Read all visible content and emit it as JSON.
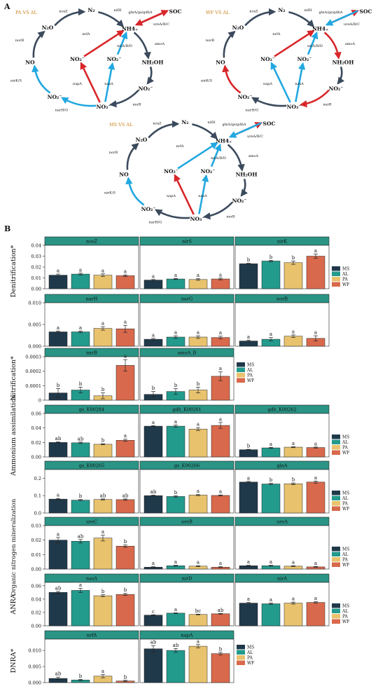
{
  "colors": {
    "MS": "#20394a",
    "AL": "#229a8c",
    "PA": "#e8c26d",
    "WF": "#d9694c",
    "header": "#2a9485",
    "arrow_dark": "#3b4a5c",
    "arrow_red": "#d8262a",
    "arrow_blue": "#22a8e0",
    "cmp_label": "#c9821c"
  },
  "panel_a": {
    "label": "A",
    "diagrams": [
      {
        "comparison": "PA VS AL",
        "nodes": {
          "n2": "N₂",
          "nh4": "NH4₊",
          "soc": "SOC",
          "nh2oh": "NH₂OH",
          "no2_right": "NO₂⁻",
          "no3": "NO₃⁻",
          "no2_left": "NO₂⁻",
          "no": "NO",
          "n2o": "N₂O",
          "no2_inner_left": "NO₂⁻",
          "no2_inner_right": "NO₂⁻"
        },
        "genes": {
          "nosZ": "nosZ",
          "nifH": "nifH",
          "glnA": "glnA/gs/gdhA",
          "ureA": "ureA/B/C",
          "amoA": "amoA",
          "nxrB": "nxrB",
          "narHG": "narH/G",
          "nirKS": "nirK/S",
          "norB": "norB",
          "nrfA": "nrfA",
          "nirAB": "nirA/B/D",
          "napA": "napA",
          "nasA": "nasA"
        },
        "arrow_colors": {
          "nrfA": "red",
          "napA": "red",
          "nirAB": "blue",
          "nasA": "blue",
          "glnA": "red",
          "ureA": "red",
          "amoA": "dark",
          "nxrB": "dark",
          "narHG": "blue",
          "nirKS": "blue",
          "norB": "dark",
          "nosZ": "dark",
          "nifH": "dark"
        }
      },
      {
        "comparison": "WF VS AL",
        "nodes": {
          "n2": "N₂",
          "nh4": "NH4₊",
          "soc": "SOC",
          "nh2oh": "NH₂OH",
          "no2_right": "NO₂⁻",
          "no3": "NO₃⁻",
          "no2_left": "NO₂⁻",
          "no": "NO",
          "n2o": "N₂O",
          "no2_inner_left": "NO₂⁻",
          "no2_inner_right": "NO₂⁻"
        },
        "genes": {
          "nosZ": "nosZ",
          "nifH": "nifH",
          "glnA": "glnA/gs/gdhA",
          "ureA": "ureA/B/C",
          "amoA": "amoA",
          "nxrB": "nxrB",
          "narHG": "narH/G",
          "nirKS": "nirK/S",
          "norB": "norB",
          "nrfA": "nrfA",
          "nirAB": "nirA/B/D",
          "napA": "napA",
          "nasA": "nasA"
        },
        "arrow_colors": {
          "nrfA": "red",
          "napA": "blue",
          "nirAB": "blue",
          "nasA": "blue",
          "glnA": "red",
          "ureA": "blue",
          "amoA": "red",
          "nxrB": "red",
          "narHG": "dark",
          "nirKS": "red",
          "norB": "dark",
          "nosZ": "dark",
          "nifH": "dark"
        }
      },
      {
        "comparison": "MS VS AL",
        "nodes": {
          "n2": "N₂",
          "nh4": "NH4₊",
          "soc": "SOC",
          "nh2oh": "NH₂OH",
          "no2_right": "NO₂⁻",
          "no3": "NO₃⁻",
          "no2_left": "NO₂⁻",
          "no": "NO",
          "n2o": "N₂O",
          "no2_inner_left": "NO₂⁻",
          "no2_inner_right": "NO₂⁻"
        },
        "genes": {
          "nosZ": "nosZ",
          "nifH": "nifH",
          "glnA": "glnA/gs/gdhA",
          "ureA": "ureA/B/C",
          "amoA": "amoA",
          "nxrB": "nxrB",
          "narHG": "narH/G",
          "nirKS": "nirK/S",
          "norB": "norB",
          "nrfA": "nrfA",
          "nirAB": "nirA/B/D",
          "napA": "napA",
          "nasA": "nasA"
        },
        "arrow_colors": {
          "nrfA": "blue",
          "napA": "red",
          "nirAB": "blue",
          "nasA": "blue",
          "glnA": "red",
          "ureA": "blue",
          "amoA": "dark",
          "nxrB": "dark",
          "narHG": "dark",
          "nirKS": "blue",
          "norB": "dark",
          "nosZ": "dark",
          "nifH": "dark"
        }
      }
    ]
  },
  "chart_data": {
    "label": "B",
    "type": "bar",
    "groups": [
      "MS",
      "AL",
      "PA",
      "WF"
    ],
    "rows": [
      {
        "ylabel": "Denitrification*",
        "yticks": [
          "0.00",
          "0.01",
          "0.02",
          "0.03",
          "0.04"
        ],
        "ylim": [
          0,
          0.04
        ],
        "panels": [
          {
            "title": "nosZ",
            "values": [
              0.0125,
              0.0135,
              0.0125,
              0.012
            ],
            "errors": [
              0.001,
              0.0008,
              0.0012,
              0.0008
            ],
            "letters": [
              "a",
              "a",
              "a",
              "a"
            ]
          },
          {
            "title": "nirS",
            "values": [
              0.008,
              0.009,
              0.0085,
              0.009
            ],
            "errors": [
              0.0005,
              0.0005,
              0.0007,
              0.0008
            ],
            "letters": [
              "a",
              "a",
              "a",
              "a"
            ]
          },
          {
            "title": "nirK",
            "values": [
              0.023,
              0.0255,
              0.024,
              0.03
            ],
            "errors": [
              0.0005,
              0.0006,
              0.0015,
              0.002
            ],
            "letters": [
              "b",
              "b",
              "b",
              "a"
            ]
          }
        ],
        "legend": true
      },
      {
        "ylabel": "",
        "yticks": [
          "0.000",
          "0.005",
          "0.010"
        ],
        "ylim": [
          0,
          0.01
        ],
        "panels": [
          {
            "title": "narH",
            "values": [
              0.0033,
              0.0033,
              0.0041,
              0.004
            ],
            "errors": [
              0.0002,
              0.0002,
              0.0004,
              0.0008
            ],
            "letters": [
              "a",
              "a",
              "a",
              "a"
            ]
          },
          {
            "title": "narG",
            "values": [
              0.0016,
              0.0021,
              0.0021,
              0.002
            ],
            "errors": [
              0.0002,
              0.0003,
              0.0003,
              0.0003
            ],
            "letters": [
              "a",
              "a",
              "a",
              "a"
            ]
          },
          {
            "title": "norB",
            "values": [
              0.0012,
              0.0016,
              0.0023,
              0.0018
            ],
            "errors": [
              0.0002,
              0.0004,
              0.0003,
              0.0006
            ],
            "letters": [
              "a",
              "a",
              "a",
              "a"
            ]
          }
        ],
        "legend": false
      },
      {
        "ylabel": "Nitrification*",
        "yticks": [
          "0",
          "0.0001",
          "0.0002",
          "0.0003"
        ],
        "ylim": [
          0,
          0.0003
        ],
        "panels": [
          {
            "title": "nxrB",
            "values": [
              5e-05,
              7e-05,
              3e-05,
              0.00024
            ],
            "errors": [
              3e-05,
              2e-05,
              2e-05,
              4e-05
            ],
            "letters": [
              "b",
              "b",
              "b",
              "a"
            ]
          },
          {
            "title": "amoA_B",
            "values": [
              4e-05,
              6e-05,
              7e-05,
              0.000165
            ],
            "errors": [
              2e-05,
              2e-05,
              2e-05,
              3e-05
            ],
            "letters": [
              "b",
              "b",
              "b",
              "a"
            ]
          }
        ],
        "legend": true
      },
      {
        "ylabel": "Ammonium assimilation",
        "yticks": [
          "0.00",
          "0.02",
          "0.04",
          "0.06"
        ],
        "ylim": [
          0,
          0.06
        ],
        "panels": [
          {
            "title": "gs_K00284",
            "values": [
              0.02,
              0.0195,
              0.0175,
              0.023
            ],
            "errors": [
              0.0007,
              0.001,
              0.0007,
              0.0015
            ],
            "letters": [
              "ab",
              "ab",
              "b",
              "a"
            ]
          },
          {
            "title": "gdh_K00261",
            "values": [
              0.0425,
              0.0425,
              0.0385,
              0.0435
            ],
            "errors": [
              0.0008,
              0.0015,
              0.002,
              0.004
            ],
            "letters": [
              "a",
              "a",
              "a",
              "a"
            ]
          },
          {
            "title": "gdh_K00262",
            "values": [
              0.01,
              0.0125,
              0.0135,
              0.013
            ],
            "errors": [
              0.0005,
              0.0007,
              0.0007,
              0.0007
            ],
            "letters": [
              "b",
              "a",
              "a",
              "a"
            ]
          }
        ],
        "legend": true
      },
      {
        "ylabel": "",
        "yticks": [
          "0.0",
          "0.1",
          "0.2"
        ],
        "ylim": [
          0,
          0.25
        ],
        "panels": [
          {
            "title": "gs_K00265",
            "values": [
              0.08,
              0.074,
              0.078,
              0.077
            ],
            "errors": [
              0.004,
              0.004,
              0.003,
              0.004
            ],
            "letters": [
              "a",
              "b",
              "ab",
              "ab"
            ]
          },
          {
            "title": "gs_K00266",
            "values": [
              0.1,
              0.095,
              0.103,
              0.101
            ],
            "errors": [
              0.003,
              0.004,
              0.003,
              0.003
            ],
            "letters": [
              "ab",
              "b",
              "a",
              "a"
            ]
          },
          {
            "title": "glnA",
            "values": [
              0.178,
              0.167,
              0.168,
              0.178
            ],
            "errors": [
              0.004,
              0.004,
              0.005,
              0.006
            ],
            "letters": [
              "a",
              "b",
              "b",
              "a"
            ]
          }
        ],
        "legend": true
      },
      {
        "ylabel": "Organic nitrogen mineralization",
        "yticks": [
          "0.00",
          "0.01",
          "0.02",
          "0.03"
        ],
        "ylim": [
          0,
          0.03
        ],
        "panels": [
          {
            "title": "ureC",
            "values": [
              0.02,
              0.0192,
              0.0214,
              0.0158
            ],
            "errors": [
              0.0018,
              0.0012,
              0.002,
              0.0008
            ],
            "letters": [
              "a",
              "ab",
              "a",
              "b"
            ]
          },
          {
            "title": "ureB",
            "values": [
              0.0013,
              0.0023,
              0.002,
              0.0013
            ],
            "errors": [
              0.0003,
              0.0003,
              0.0003,
              0.0003
            ],
            "letters": [
              "a",
              "a",
              "a",
              "a"
            ]
          },
          {
            "title": "ureA",
            "values": [
              0.0023,
              0.0023,
              0.002,
              0.0015
            ],
            "errors": [
              0.0003,
              0.0003,
              0.0003,
              0.0003
            ],
            "letters": [
              "a",
              "a",
              "a",
              "a"
            ]
          }
        ],
        "legend": true
      },
      {
        "ylabel": "ANRA",
        "yticks": [
          "0.00",
          "0.02",
          "0.04",
          "0.06"
        ],
        "ylim": [
          0,
          0.065
        ],
        "panels": [
          {
            "title": "nasA",
            "values": [
              0.05,
              0.053,
              0.045,
              0.047
            ],
            "errors": [
              0.0015,
              0.003,
              0.0015,
              0.0015
            ],
            "letters": [
              "ab",
              "a",
              "b",
              "b"
            ]
          },
          {
            "title": "nirD",
            "values": [
              0.016,
              0.019,
              0.017,
              0.018
            ],
            "errors": [
              0.0005,
              0.0005,
              0.0005,
              0.0005
            ],
            "letters": [
              "c",
              "a",
              "bc",
              "ab"
            ]
          },
          {
            "title": "nirA",
            "values": [
              0.034,
              0.033,
              0.034,
              0.035
            ],
            "errors": [
              0.001,
              0.001,
              0.0015,
              0.001
            ],
            "letters": [
              "a",
              "a",
              "a",
              "a"
            ]
          }
        ],
        "legend": true
      },
      {
        "ylabel": "DNRA*",
        "yticks": [
          "0.000",
          "0.005",
          "0.010"
        ],
        "ylim": [
          0,
          0.0135
        ],
        "panels": [
          {
            "title": "nrfA",
            "values": [
              0.0013,
              0.0008,
              0.002,
              0.0005
            ],
            "errors": [
              0.0004,
              0.0002,
              0.0005,
              0.0002
            ],
            "letters": [
              "ab",
              "b",
              "a",
              "b"
            ]
          },
          {
            "title": "napA",
            "values": [
              0.0105,
              0.01,
              0.0113,
              0.009
            ],
            "errors": [
              0.001,
              0.0006,
              0.0005,
              0.0004
            ],
            "letters": [
              "ab",
              "ab",
              "a",
              "b"
            ]
          }
        ],
        "legend": true
      }
    ]
  }
}
